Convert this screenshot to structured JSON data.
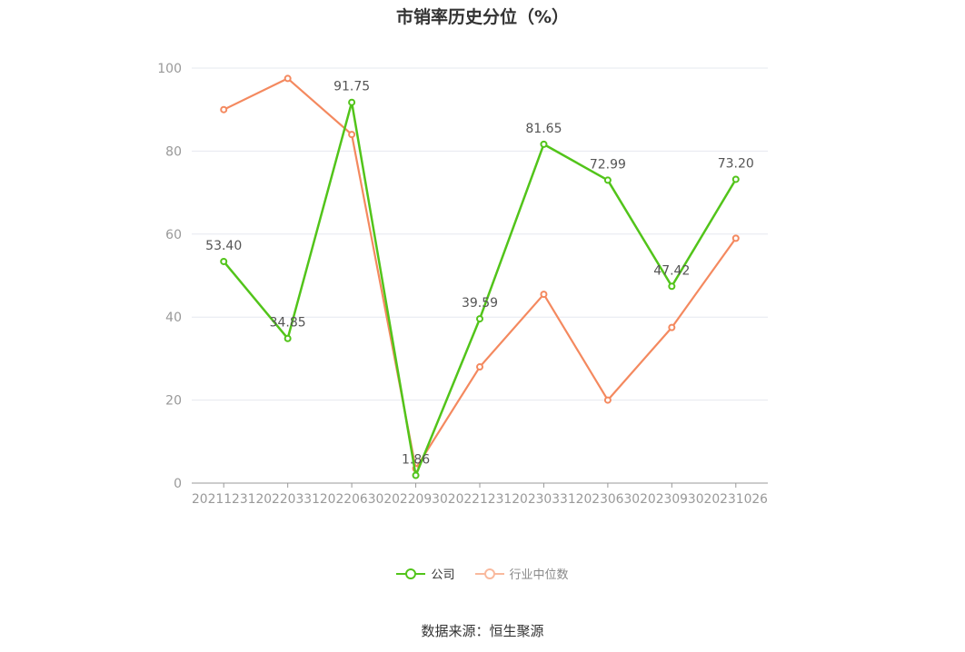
{
  "chart_data": {
    "type": "line",
    "title": "市销率历史分位（%）",
    "categories": [
      "20211231",
      "20220331",
      "20220630",
      "20220930",
      "20221231",
      "20230331",
      "20230630",
      "20230930",
      "20231026"
    ],
    "series": [
      {
        "name": "公司",
        "color": "#52c41a",
        "values": [
          53.4,
          34.85,
          91.75,
          1.86,
          39.59,
          81.65,
          72.99,
          47.42,
          73.2
        ],
        "labels": [
          "53.40",
          "34.85",
          "91.75",
          "1.86",
          "39.59",
          "81.65",
          "72.99",
          "47.42",
          "73.20"
        ]
      },
      {
        "name": "行业中位数",
        "color": "#f4895f",
        "values": [
          90,
          97.5,
          84,
          3.5,
          28,
          45.5,
          20,
          37.5,
          59
        ]
      }
    ],
    "ylim": [
      0,
      100
    ],
    "yticks": [
      0,
      20,
      40,
      60,
      80,
      100
    ],
    "grid": true,
    "legend_position": "bottom"
  },
  "source": "数据来源：恒生聚源"
}
